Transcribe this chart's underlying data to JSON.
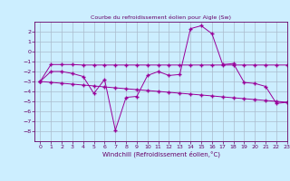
{
  "title": "Courbe du refroidissement éolien pour Aigle (Sw)",
  "xlabel": "Windchill (Refroidissement éolien,°C)",
  "x": [
    0,
    1,
    2,
    3,
    4,
    5,
    6,
    7,
    8,
    9,
    10,
    11,
    12,
    13,
    14,
    15,
    16,
    17,
    18,
    19,
    20,
    21,
    22,
    23
  ],
  "line1_y": [
    -3,
    -2,
    -2,
    -2.2,
    -2.5,
    -4.2,
    -2.8,
    -7.9,
    -4.6,
    -4.5,
    -2.4,
    -2.0,
    -2.4,
    -2.3,
    2.3,
    2.6,
    1.8,
    -1.3,
    -1.2,
    -3.1,
    -3.2,
    -3.5,
    -5.2,
    -5.1
  ],
  "line2_y": [
    -3,
    -1.3,
    -1.3,
    -1.3,
    -1.35,
    -1.35,
    -1.35,
    -1.35,
    -1.35,
    -1.35,
    -1.35,
    -1.35,
    -1.35,
    -1.35,
    -1.35,
    -1.35,
    -1.35,
    -1.35,
    -1.35,
    -1.35,
    -1.35,
    -1.35,
    -1.35,
    -1.35
  ],
  "line3_y": [
    -3.0,
    -3.09,
    -3.18,
    -3.27,
    -3.36,
    -3.45,
    -3.55,
    -3.64,
    -3.73,
    -3.82,
    -3.91,
    -4.0,
    -4.09,
    -4.18,
    -4.27,
    -4.36,
    -4.45,
    -4.55,
    -4.64,
    -4.73,
    -4.82,
    -4.91,
    -5.0,
    -5.09
  ],
  "ylim": [
    -9,
    3
  ],
  "xlim": [
    -0.5,
    23
  ],
  "yticks": [
    2,
    1,
    0,
    -1,
    -2,
    -3,
    -4,
    -5,
    -6,
    -7,
    -8
  ],
  "xticks": [
    0,
    1,
    2,
    3,
    4,
    5,
    6,
    7,
    8,
    9,
    10,
    11,
    12,
    13,
    14,
    15,
    16,
    17,
    18,
    19,
    20,
    21,
    22,
    23
  ],
  "line_color": "#990099",
  "bg_color": "#cceeff",
  "grid_color": "#aabbcc",
  "title_color": "#660066",
  "label_color": "#660066",
  "tick_color": "#660066"
}
